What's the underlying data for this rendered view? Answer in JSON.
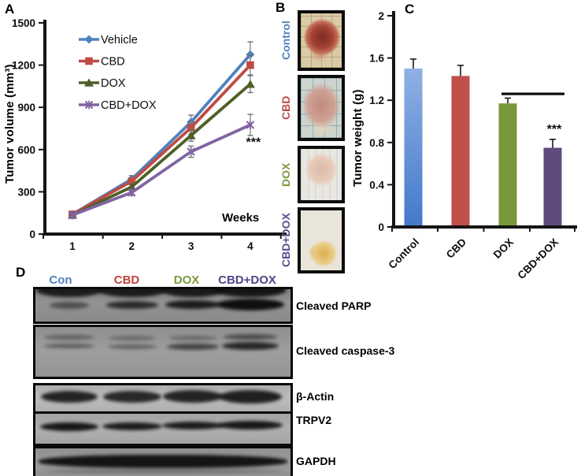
{
  "panels": {
    "a": "A",
    "b": "B",
    "c": "C",
    "d": "D"
  },
  "chart_data": [
    {
      "type": "line",
      "title": "",
      "xlabel": "Weeks",
      "ylabel": "Tumor volume  (mm³)",
      "x": [
        1,
        2,
        3,
        4
      ],
      "ylim": [
        0,
        1500
      ],
      "yticks": [
        0,
        300,
        600,
        900,
        1200,
        1500
      ],
      "grid": false,
      "legend_position": "top-left-inside",
      "annotation": {
        "text": "***",
        "series": "CBD+DOX",
        "week": 4
      },
      "series": [
        {
          "name": "Vehicle",
          "color": "#4F81BD",
          "marker": "diamond",
          "values": [
            140,
            390,
            795,
            1275
          ],
          "errors": [
            15,
            25,
            50,
            90
          ]
        },
        {
          "name": "CBD",
          "color": "#BF4B45",
          "marker": "square",
          "values": [
            140,
            375,
            755,
            1200
          ],
          "errors": [
            15,
            25,
            45,
            70
          ]
        },
        {
          "name": "DOX",
          "color": "#4E5F26",
          "marker": "triangle",
          "values": [
            135,
            335,
            700,
            1065
          ],
          "errors": [
            12,
            22,
            40,
            60
          ]
        },
        {
          "name": "CBD+DOX",
          "color": "#8064A2",
          "marker": "star",
          "values": [
            135,
            295,
            585,
            775
          ],
          "errors": [
            12,
            20,
            40,
            75
          ]
        }
      ]
    },
    {
      "type": "bar",
      "title": "",
      "xlabel": "",
      "ylabel": "Tumor weight (g)",
      "categories": [
        "Control",
        "CBD",
        "DOX",
        "CBD+DOX"
      ],
      "values": [
        1.5,
        1.43,
        1.17,
        0.75
      ],
      "errors": [
        0.09,
        0.1,
        0.05,
        0.08
      ],
      "colors": [
        "#7AA0DD",
        "#BF504C",
        "#78983B",
        "#5F4B7E"
      ],
      "bar_gradient": {
        "index": 0,
        "top": "#8FB0E4",
        "bottom": "#4379CB"
      },
      "ylim": [
        0,
        2
      ],
      "yticks": [
        0,
        0.4,
        0.8,
        1.2,
        1.6,
        2
      ],
      "grid": false,
      "annotation": {
        "text": "***",
        "category": "CBD+DOX"
      },
      "sig_line": {
        "from": "DOX",
        "to": "CBD+DOX",
        "y": 1.26
      }
    }
  ],
  "panel_b": {
    "items": [
      {
        "label": "Control",
        "color": "#4F81BD"
      },
      {
        "label": "CBD",
        "color": "#BE4B48"
      },
      {
        "label": "DOX",
        "color": "#7C9A3C"
      },
      {
        "label": "CBD+DOX",
        "color": "#5A4A8F"
      }
    ]
  },
  "panel_d": {
    "lanes": [
      {
        "label": "Con",
        "color": "#4F81BD"
      },
      {
        "label": "CBD",
        "color": "#C0413C"
      },
      {
        "label": "DOX",
        "color": "#7C9A3C"
      },
      {
        "label": "CBD+DOX",
        "color": "#554387"
      }
    ],
    "blots": [
      {
        "label": "Cleaved PARP"
      },
      {
        "label": "Cleaved caspase-3"
      },
      {
        "label": "β-Actin"
      },
      {
        "label": "TRPV2"
      },
      {
        "label": "GAPDH"
      }
    ]
  }
}
